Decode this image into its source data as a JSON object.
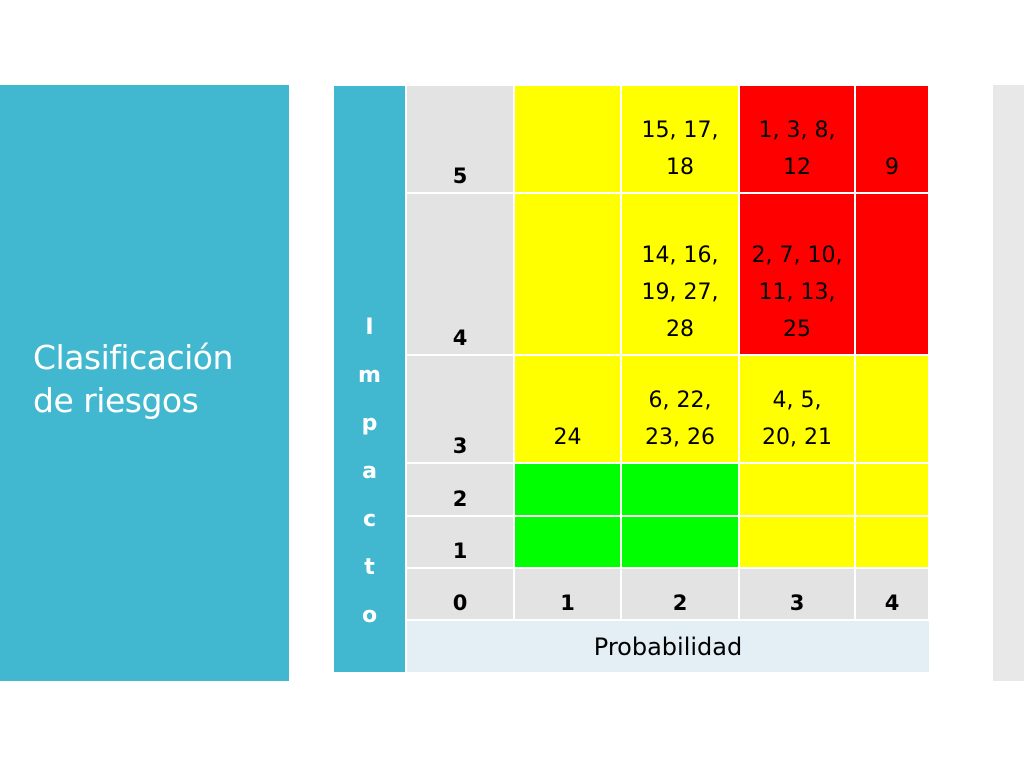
{
  "title": "Clasificación de riesgos",
  "matrix": {
    "y_axis_label": [
      "I",
      "m",
      "p",
      "a",
      "c",
      "t",
      "o"
    ],
    "x_axis_label": "Probabilidad",
    "row_labels": [
      "5",
      "4",
      "3",
      "2",
      "1"
    ],
    "col_labels": [
      "0",
      "1",
      "2",
      "3",
      "4"
    ],
    "cells": [
      [
        "",
        "15, 17, 18",
        "1, 3, 8, 12",
        "9"
      ],
      [
        "",
        "14, 16, 19, 27, 28",
        "2, 7, 10, 11, 13, 25",
        ""
      ],
      [
        "24",
        "6, 22, 23, 26",
        "4, 5, 20, 21",
        ""
      ],
      [
        "",
        "",
        "",
        ""
      ],
      [
        "",
        "",
        "",
        ""
      ]
    ],
    "cell_colors": [
      [
        "#ffff00",
        "#ffff00",
        "#ff0000",
        "#ff0000"
      ],
      [
        "#ffff00",
        "#ffff00",
        "#ff0000",
        "#ff0000"
      ],
      [
        "#ffff00",
        "#ffff00",
        "#ffff00",
        "#ffff00"
      ],
      [
        "#00ff00",
        "#00ff00",
        "#ffff00",
        "#ffff00"
      ],
      [
        "#00ff00",
        "#00ff00",
        "#ffff00",
        "#ffff00"
      ]
    ]
  },
  "colors": {
    "accent": "#41b8d0",
    "axis_cell": "#e3e3e3",
    "xlabel_bg": "#e3eff5"
  }
}
